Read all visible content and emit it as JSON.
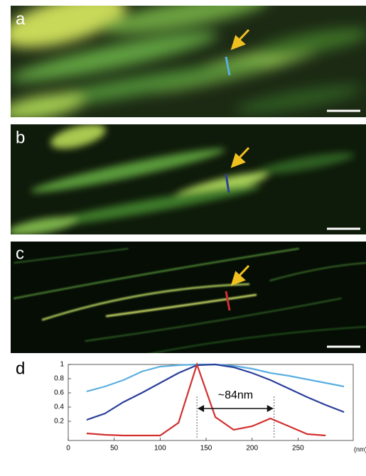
{
  "panels": [
    {
      "label": "a"
    },
    {
      "label": "b"
    },
    {
      "label": "c"
    }
  ],
  "chart_data": {
    "type": "line",
    "label": "d",
    "x_unit": "(nm)",
    "annotation": "~84nm",
    "annotation_range": [
      140,
      224
    ],
    "x": [
      20,
      40,
      60,
      80,
      100,
      120,
      140,
      160,
      180,
      200,
      220,
      240,
      260,
      280,
      300
    ],
    "series": [
      {
        "color": "#5aaee0",
        "values": [
          0.62,
          0.69,
          0.78,
          0.9,
          0.97,
          0.99,
          1.0,
          1.0,
          0.98,
          0.94,
          0.88,
          0.84,
          0.79,
          0.74,
          0.69
        ]
      },
      {
        "color": "#2a3f9a",
        "values": [
          0.22,
          0.31,
          0.47,
          0.6,
          0.74,
          0.88,
          0.99,
          1.0,
          0.96,
          0.88,
          0.78,
          0.66,
          0.54,
          0.43,
          0.33
        ]
      },
      {
        "color": "#d23030",
        "values": [
          0.03,
          0.01,
          0,
          0,
          0,
          0.18,
          1.0,
          0.26,
          0.08,
          0.13,
          0.24,
          0.13,
          0.02,
          0,
          null
        ]
      }
    ],
    "xlim": [
      0,
      310
    ],
    "ylim": [
      0,
      1
    ],
    "xticks": [
      0,
      50,
      100,
      150,
      200,
      250
    ],
    "yticks": [
      0.2,
      0.4,
      0.6,
      0.8,
      1
    ]
  }
}
